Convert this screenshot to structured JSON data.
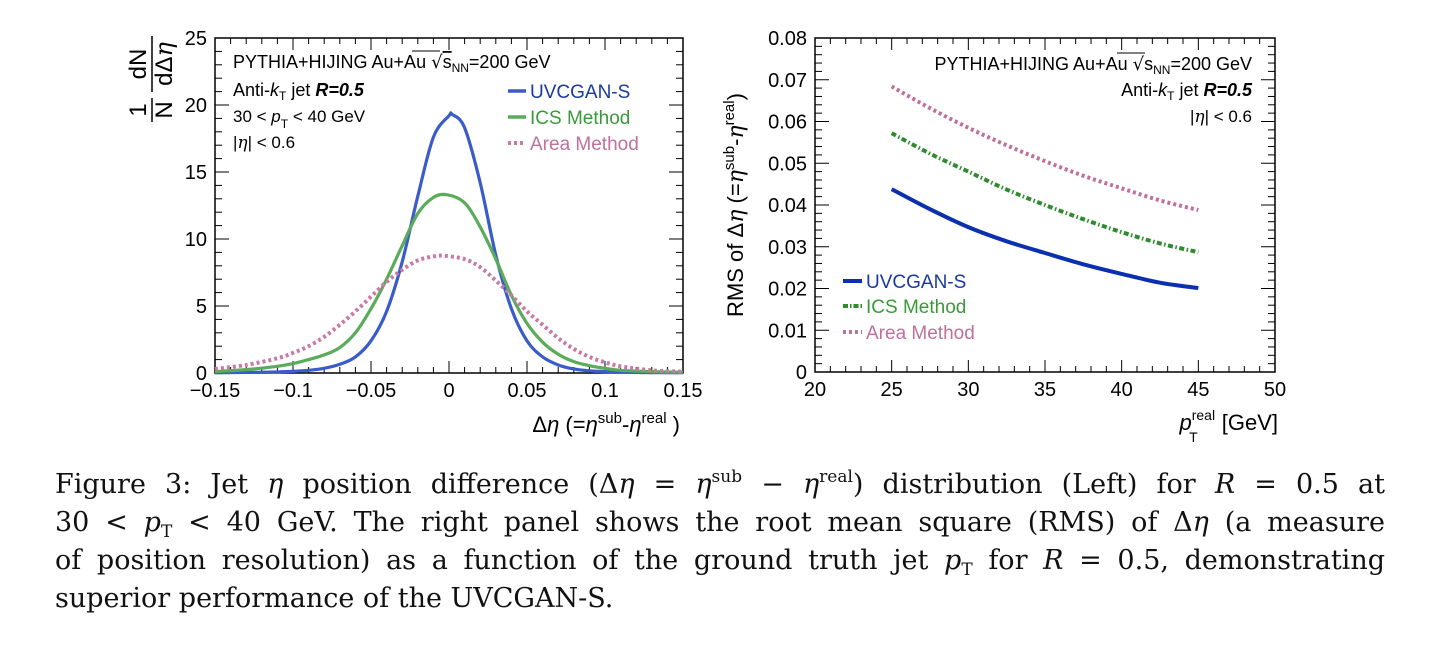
{
  "figure": {
    "caption_lines": [
      "Figure 3:  Jet η position difference (Δη = η^sub − η^real) distribution (Left) for R = 0.5 at",
      "30 < p_T < 40 GeV. The right panel shows the root mean square (RMS) of Δη (a measure",
      "of position resolution) as a function of the ground truth jet p_T for R = 0.5, demonstrating",
      "superior performance of the UVCGAN-S."
    ],
    "caption_parts": {
      "l1a": "Figure 3:  Jet ",
      "l1b": "η",
      "l1c": " position difference (Δ",
      "l1d": "η",
      "l1e": " = ",
      "l1f": "η",
      "l1g": "sub",
      "l1h": " − ",
      "l1i": "η",
      "l1j": "real",
      "l1k": ") distribution (Left) for ",
      "l1l": "R",
      "l1m": " = 0.5 at",
      "l2a": "30 < ",
      "l2b": "p",
      "l2c": "T",
      "l2d": " < 40 GeV. The right panel shows the root mean square (RMS) of Δ",
      "l2e": "η",
      "l2f": " (a measure",
      "l3a": "of position resolution) as a function of the ground truth jet ",
      "l3b": "p",
      "l3c": "T",
      "l3d": " for ",
      "l3e": "R",
      "l3f": " = 0.5, demonstrating",
      "l4a": "superior performance of the UVCGAN-S."
    }
  },
  "colors": {
    "uvcgan_left": "#3a5cc8",
    "ics_left": "#5aab5a",
    "area_left": "#c87aa6",
    "uvcgan_right": "#0a2fb0",
    "ics_right": "#2e8b2e",
    "area_right": "#c0709a",
    "uvcgan_text": "#1a3aa0",
    "ics_text": "#3a9a3a",
    "area_text": "#c0709a"
  },
  "chart_data": [
    {
      "type": "line",
      "title": "",
      "xlabel": "Δη (=η^sub-η^real )",
      "ylabel": "1/N dN/dΔη",
      "xlim": [
        -0.15,
        0.15
      ],
      "ylim": [
        0,
        25
      ],
      "xticks": [
        "-0.15",
        "-0.1",
        "-0.05",
        "0",
        "0.05",
        "0.1",
        "0.15"
      ],
      "xtick_values": [
        -0.15,
        -0.1,
        -0.05,
        0,
        0.05,
        0.1,
        0.15
      ],
      "yticks": [
        "0",
        "5",
        "10",
        "15",
        "20",
        "25"
      ],
      "ytick_values": [
        0,
        5,
        10,
        15,
        20,
        25
      ],
      "grid": false,
      "legend_position": "top-right",
      "annotations": {
        "line1": "PYTHIA+HIJING Au+Au ",
        "sqrt_s": "s",
        "sqrt_sub": "NN",
        "energy": "=200 GeV",
        "antikt_a": "Anti-",
        "antikt_k": "k",
        "antikt_sub": "T",
        "antikt_b": " jet  ",
        "radius": "R=0.5",
        "pt_a": "30 < ",
        "pt_p": "p",
        "pt_sub": "T",
        "pt_b": " < 40 GeV",
        "eta_a": "|",
        "eta_sym": "η",
        "eta_b": "| < 0.6"
      },
      "series": [
        {
          "name": "UVCGAN-S",
          "style": "solid",
          "x": [
            -0.15,
            -0.13,
            -0.11,
            -0.1,
            -0.09,
            -0.08,
            -0.07,
            -0.06,
            -0.05,
            -0.04,
            -0.03,
            -0.02,
            -0.01,
            0.0,
            0.002,
            0.01,
            0.02,
            0.03,
            0.04,
            0.05,
            0.06,
            0.07,
            0.08,
            0.09,
            0.1,
            0.11,
            0.13,
            0.15
          ],
          "y": [
            0.02,
            0.04,
            0.08,
            0.12,
            0.2,
            0.35,
            0.65,
            1.2,
            2.4,
            4.6,
            8.3,
            13.2,
            17.6,
            19.2,
            19.3,
            18.3,
            14.2,
            8.8,
            4.8,
            2.4,
            1.2,
            0.6,
            0.3,
            0.16,
            0.1,
            0.06,
            0.03,
            0.02
          ]
        },
        {
          "name": "ICS Method",
          "style": "solid",
          "x": [
            -0.15,
            -0.13,
            -0.11,
            -0.1,
            -0.09,
            -0.08,
            -0.07,
            -0.06,
            -0.05,
            -0.04,
            -0.03,
            -0.02,
            -0.01,
            -0.001,
            0.01,
            0.02,
            0.03,
            0.04,
            0.05,
            0.06,
            0.07,
            0.08,
            0.09,
            0.1,
            0.11,
            0.13,
            0.15
          ],
          "y": [
            0.1,
            0.25,
            0.5,
            0.7,
            1.0,
            1.35,
            1.9,
            3.0,
            4.8,
            7.0,
            9.5,
            11.9,
            13.1,
            13.3,
            12.7,
            10.9,
            8.5,
            5.8,
            3.7,
            2.3,
            1.4,
            0.85,
            0.55,
            0.35,
            0.2,
            0.1,
            0.05
          ]
        },
        {
          "name": "Area Method",
          "style": "dotted",
          "x": [
            -0.15,
            -0.13,
            -0.11,
            -0.1,
            -0.09,
            -0.08,
            -0.07,
            -0.06,
            -0.05,
            -0.04,
            -0.03,
            -0.02,
            -0.01,
            -0.003,
            0.01,
            0.02,
            0.03,
            0.04,
            0.05,
            0.06,
            0.07,
            0.08,
            0.09,
            0.1,
            0.11,
            0.13,
            0.15
          ],
          "y": [
            0.3,
            0.6,
            1.1,
            1.5,
            2.0,
            2.7,
            3.6,
            4.6,
            5.7,
            6.8,
            7.7,
            8.4,
            8.7,
            8.75,
            8.5,
            7.9,
            6.9,
            5.8,
            4.6,
            3.6,
            2.6,
            1.8,
            1.2,
            0.8,
            0.5,
            0.2,
            0.1
          ]
        }
      ]
    },
    {
      "type": "line",
      "title": "",
      "xlabel": "p_T^real [GeV]",
      "ylabel": "RMS of  Δη (=η^sub-η^real)",
      "xlim": [
        20,
        50
      ],
      "ylim": [
        0,
        0.08
      ],
      "xticks": [
        "20",
        "25",
        "30",
        "35",
        "40",
        "45",
        "50"
      ],
      "xtick_values": [
        20,
        25,
        30,
        35,
        40,
        45,
        50
      ],
      "yticks": [
        "0",
        "0.01",
        "0.02",
        "0.03",
        "0.04",
        "0.05",
        "0.06",
        "0.07",
        "0.08"
      ],
      "ytick_values": [
        0,
        0.01,
        0.02,
        0.03,
        0.04,
        0.05,
        0.06,
        0.07,
        0.08
      ],
      "grid": false,
      "legend_position": "bottom-left",
      "annotations": {
        "line1": "PYTHIA+HIJING Au+Au ",
        "sqrt_s": "s",
        "sqrt_sub": "NN",
        "energy": "=200 GeV",
        "antikt_a": "Anti-",
        "antikt_k": "k",
        "antikt_sub": "T",
        "antikt_b": " jet  ",
        "radius": "R=0.5",
        "eta_a": "|",
        "eta_sym": "η",
        "eta_b": "| < 0.6"
      },
      "series": [
        {
          "name": "UVCGAN-S",
          "style": "solid",
          "x": [
            25,
            27.5,
            30,
            32.5,
            35,
            37.5,
            40,
            42.5,
            45
          ],
          "y": [
            0.0438,
            0.039,
            0.0347,
            0.0313,
            0.0285,
            0.0258,
            0.0235,
            0.0214,
            0.0201
          ]
        },
        {
          "name": "ICS Method",
          "style": "dashdot",
          "x": [
            25,
            27.5,
            30,
            32.5,
            35,
            37.5,
            40,
            42.5,
            45
          ],
          "y": [
            0.0572,
            0.0523,
            0.048,
            0.0437,
            0.04,
            0.0366,
            0.0335,
            0.0308,
            0.0287
          ]
        },
        {
          "name": "Area Method",
          "style": "dotted",
          "x": [
            25,
            27.5,
            30,
            32.5,
            35,
            37.5,
            40,
            42.5,
            45
          ],
          "y": [
            0.0684,
            0.0632,
            0.0585,
            0.0543,
            0.0505,
            0.047,
            0.044,
            0.0411,
            0.0388
          ]
        }
      ]
    }
  ]
}
